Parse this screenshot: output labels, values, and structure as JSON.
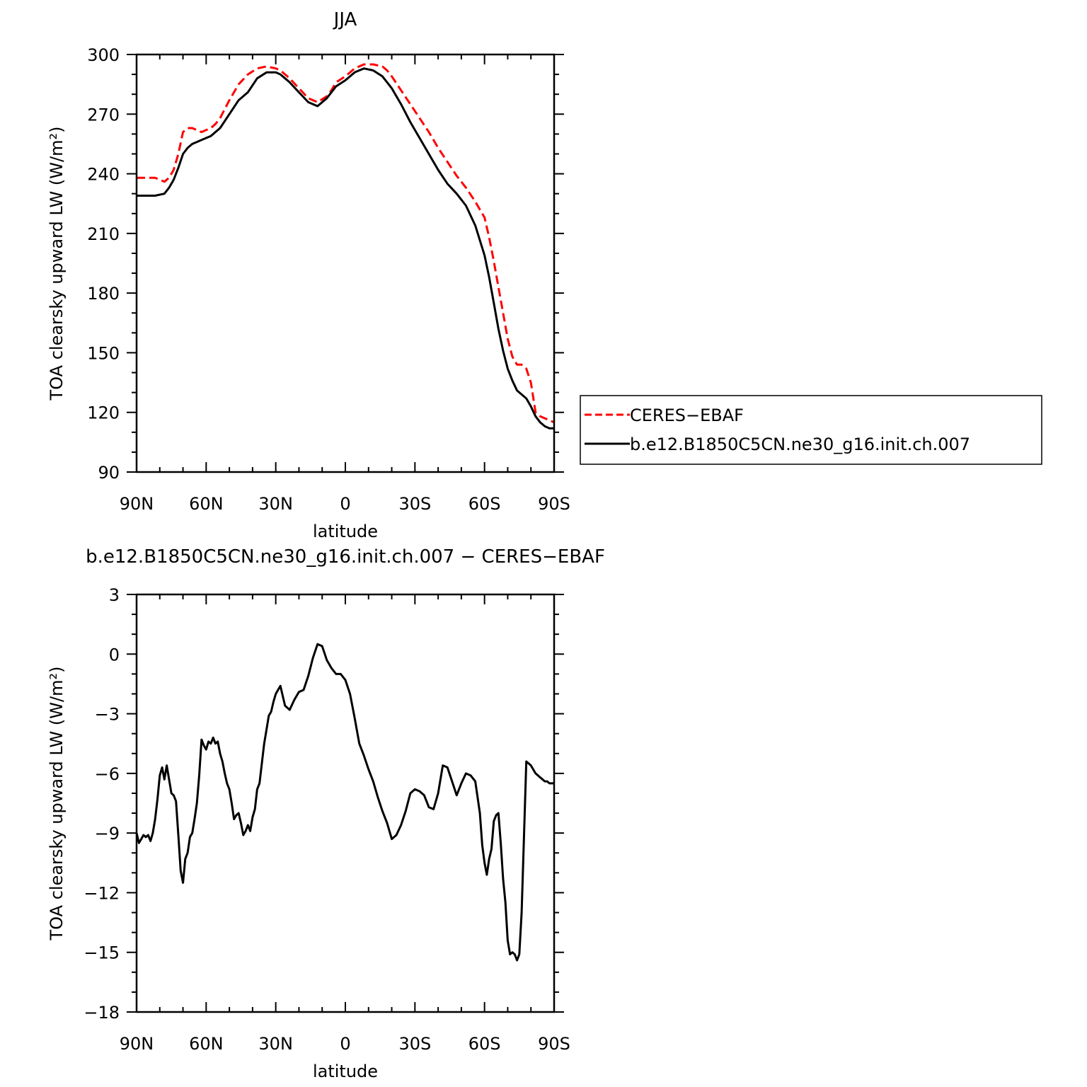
{
  "chart_data": [
    {
      "type": "line",
      "title": "JJA",
      "xlabel": "latitude",
      "ylabel": "TOA clearsky upward LW (W/m²)",
      "xlim": [
        90,
        -90
      ],
      "ylim": [
        90,
        300
      ],
      "x_ticks": [
        90,
        60,
        30,
        0,
        -30,
        -60,
        -90
      ],
      "x_tick_labels": [
        "90N",
        "60N",
        "30N",
        "0",
        "30S",
        "60S",
        "90S"
      ],
      "y_ticks": [
        90,
        120,
        150,
        180,
        210,
        240,
        270,
        300
      ],
      "y_tick_labels": [
        "90",
        "120",
        "150",
        "180",
        "210",
        "240",
        "270",
        "300"
      ],
      "grid": false,
      "legend": "right",
      "series": [
        {
          "name": "CERES−EBAF",
          "color": "#ff0000",
          "dash": "dashed",
          "x": [
            90,
            86,
            82,
            78,
            76,
            74,
            72,
            70,
            68,
            66,
            64,
            62,
            60,
            58,
            56,
            54,
            50,
            46,
            42,
            38,
            34,
            30,
            28,
            26,
            24,
            20,
            16,
            12,
            8,
            6,
            4,
            0,
            -4,
            -8,
            -12,
            -16,
            -18,
            -20,
            -24,
            -28,
            -32,
            -36,
            -40,
            -44,
            -48,
            -52,
            -56,
            -60,
            -62,
            -64,
            -66,
            -68,
            -70,
            -72,
            -74,
            -76,
            -78,
            -80,
            -82,
            -84,
            -86,
            -88,
            -90
          ],
          "y": [
            238,
            238,
            238,
            236,
            238,
            242,
            250,
            261,
            263,
            263,
            262,
            261,
            262,
            263,
            265,
            268,
            277,
            285,
            290,
            293,
            294,
            293,
            292,
            290,
            288,
            283,
            278,
            276,
            279,
            282,
            286,
            289,
            293,
            295,
            295,
            294,
            292,
            289,
            282,
            275,
            268,
            261,
            253,
            246,
            239,
            233,
            226,
            218,
            208,
            196,
            183,
            170,
            157,
            148,
            144,
            144,
            142,
            135,
            120,
            118,
            117,
            116,
            115
          ]
        },
        {
          "name": "b.e12.B1850C5CN.ne30_g16.init.ch.007",
          "color": "#000000",
          "dash": "solid",
          "x": [
            90,
            86,
            82,
            78,
            76,
            74,
            72,
            70,
            68,
            66,
            64,
            62,
            60,
            58,
            56,
            54,
            50,
            46,
            42,
            38,
            34,
            30,
            28,
            26,
            24,
            20,
            16,
            12,
            8,
            6,
            4,
            0,
            -4,
            -8,
            -12,
            -16,
            -18,
            -20,
            -24,
            -28,
            -32,
            -36,
            -40,
            -44,
            -48,
            -52,
            -56,
            -60,
            -62,
            -64,
            -66,
            -68,
            -70,
            -72,
            -74,
            -76,
            -78,
            -80,
            -82,
            -84,
            -86,
            -88,
            -90
          ],
          "y": [
            229,
            229,
            229,
            230,
            233,
            237,
            243,
            250,
            253,
            255,
            256,
            257,
            258,
            259,
            261,
            263,
            270,
            277,
            281,
            288,
            291,
            291,
            290,
            288,
            286,
            281,
            276,
            274,
            278,
            281,
            284,
            287,
            291,
            293,
            292,
            289,
            286,
            283,
            275,
            266,
            258,
            250,
            242,
            235,
            230,
            224,
            214,
            199,
            188,
            175,
            162,
            151,
            142,
            136,
            131,
            129,
            127,
            123,
            118,
            115,
            113,
            112,
            112
          ]
        }
      ]
    },
    {
      "type": "line",
      "title": "b.e12.B1850C5CN.ne30_g16.init.ch.007 − CERES−EBAF",
      "xlabel": "latitude",
      "ylabel": "TOA clearsky upward LW (W/m²)",
      "xlim": [
        90,
        -90
      ],
      "ylim": [
        -18,
        3
      ],
      "x_ticks": [
        90,
        60,
        30,
        0,
        -30,
        -60,
        -90
      ],
      "x_tick_labels": [
        "90N",
        "60N",
        "30N",
        "0",
        "30S",
        "60S",
        "90S"
      ],
      "y_ticks": [
        -18,
        -15,
        -12,
        -9,
        -6,
        -3,
        0,
        3
      ],
      "y_tick_labels": [
        "−18",
        "−15",
        "−12",
        "−9",
        "−6",
        "−3",
        "0",
        "3"
      ],
      "grid": false,
      "series": [
        {
          "color": "#000000",
          "dash": "solid",
          "x": [
            90,
            89,
            88,
            87,
            86,
            85,
            84,
            83,
            82,
            81,
            80,
            79,
            78,
            77,
            76,
            75,
            74,
            73,
            72,
            71,
            70,
            69,
            68,
            67,
            66,
            65,
            64,
            63,
            62,
            61,
            60,
            59,
            58,
            57,
            56,
            55,
            54,
            53,
            52,
            51,
            50,
            49,
            48,
            47,
            46,
            45,
            44,
            43,
            42,
            41,
            40,
            39,
            38,
            37,
            36,
            35,
            34,
            33,
            32,
            31,
            30,
            29,
            28,
            27,
            26,
            24,
            22,
            20,
            18,
            16,
            14,
            12,
            10,
            8,
            6,
            4,
            2,
            0,
            -2,
            -4,
            -6,
            -8,
            -10,
            -12,
            -14,
            -16,
            -18,
            -20,
            -22,
            -24,
            -26,
            -28,
            -30,
            -32,
            -34,
            -36,
            -38,
            -40,
            -42,
            -44,
            -46,
            -48,
            -50,
            -52,
            -54,
            -56,
            -58,
            -59,
            -60,
            -61,
            -62,
            -63,
            -64,
            -65,
            -66,
            -67,
            -68,
            -69,
            -70,
            -71,
            -72,
            -73,
            -74,
            -75,
            -76,
            -77,
            -78,
            -79,
            -80,
            -81,
            -82,
            -83,
            -84,
            -85,
            -86,
            -87,
            -88,
            -89,
            -90
          ],
          "y": [
            -9.0,
            -9.5,
            -9.3,
            -9.1,
            -9.2,
            -9.1,
            -9.4,
            -9.0,
            -8.3,
            -7.3,
            -6.1,
            -5.7,
            -6.3,
            -5.6,
            -6.3,
            -7.0,
            -7.1,
            -7.4,
            -9.1,
            -10.9,
            -11.5,
            -10.3,
            -10.0,
            -9.2,
            -9.0,
            -8.3,
            -7.5,
            -6.1,
            -4.3,
            -4.6,
            -4.8,
            -4.4,
            -4.5,
            -4.2,
            -4.5,
            -4.4,
            -5.0,
            -5.4,
            -6.0,
            -6.5,
            -6.8,
            -7.5,
            -8.3,
            -8.1,
            -8.0,
            -8.5,
            -9.1,
            -8.9,
            -8.6,
            -8.9,
            -8.2,
            -7.8,
            -6.8,
            -6.5,
            -5.5,
            -4.5,
            -3.8,
            -3.1,
            -2.9,
            -2.4,
            -2.0,
            -1.8,
            -1.6,
            -2.1,
            -2.6,
            -2.8,
            -2.3,
            -1.9,
            -1.8,
            -1.1,
            -0.2,
            0.5,
            0.4,
            -0.3,
            -0.7,
            -1.0,
            -1.0,
            -1.3,
            -2.0,
            -3.2,
            -4.5,
            -5.1,
            -5.8,
            -6.4,
            -7.2,
            -7.9,
            -8.5,
            -9.3,
            -9.1,
            -8.6,
            -7.9,
            -7.0,
            -6.8,
            -6.9,
            -7.1,
            -7.7,
            -7.8,
            -7.0,
            -5.6,
            -5.7,
            -6.4,
            -7.1,
            -6.5,
            -6.0,
            -6.1,
            -6.4,
            -8.0,
            -9.6,
            -10.5,
            -11.1,
            -10.3,
            -9.8,
            -8.4,
            -8.1,
            -8.0,
            -9.5,
            -11.3,
            -12.5,
            -14.4,
            -15.1,
            -15.0,
            -15.1,
            -15.4,
            -15.1,
            -13.0,
            -9.2,
            -5.4,
            -5.5,
            -5.6,
            -5.8,
            -6.0,
            -6.1,
            -6.2,
            -6.3,
            -6.4,
            -6.4,
            -6.5,
            -6.5,
            -6.5
          ]
        }
      ]
    }
  ]
}
